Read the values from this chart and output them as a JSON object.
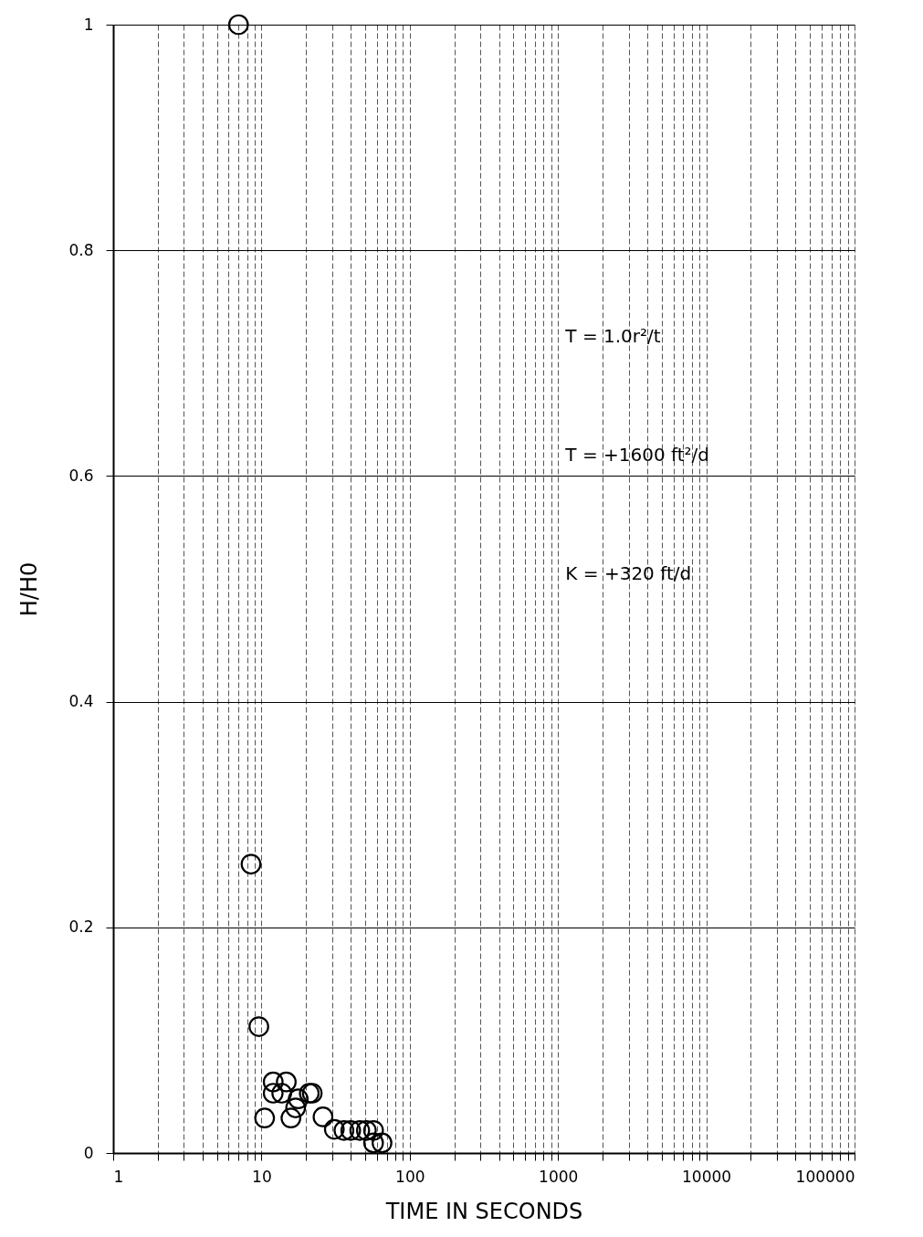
{
  "chart_data": {
    "type": "scatter",
    "xlabel": "TIME IN SECONDS",
    "ylabel": "H/H0",
    "log": "x",
    "grid": true,
    "marker": "circle",
    "xlim": [
      1,
      100000
    ],
    "ylim": [
      0,
      1
    ],
    "xticks": [
      1,
      {
        "value": 2,
        "label": null
      },
      {
        "value": 3,
        "label": null
      },
      {
        "value": 4,
        "label": null
      },
      {
        "value": 5,
        "label": null
      },
      {
        "value": 6,
        "label": null
      },
      {
        "value": 7,
        "label": null
      },
      {
        "value": 8,
        "label": null
      },
      {
        "value": 9,
        "label": null
      },
      10,
      {
        "value": 20,
        "label": null
      },
      {
        "value": 30,
        "label": null
      },
      {
        "value": 40,
        "label": null
      },
      {
        "value": 50,
        "label": null
      },
      {
        "value": 60,
        "label": null
      },
      {
        "value": 70,
        "label": null
      },
      {
        "value": 80,
        "label": null
      },
      {
        "value": 90,
        "label": null
      },
      100,
      {
        "value": 200,
        "label": null
      },
      {
        "value": 300,
        "label": null
      },
      {
        "value": 400,
        "label": null
      },
      {
        "value": 500,
        "label": null
      },
      {
        "value": 600,
        "label": null
      },
      {
        "value": 700,
        "label": null
      },
      {
        "value": 800,
        "label": null
      },
      {
        "value": 900,
        "label": null
      },
      1000,
      {
        "value": 2000,
        "label": null
      },
      {
        "value": 3000,
        "label": null
      },
      {
        "value": 4000,
        "label": null
      },
      {
        "value": 5000,
        "label": null
      },
      {
        "value": 6000,
        "label": null
      },
      {
        "value": 7000,
        "label": null
      },
      {
        "value": 8000,
        "label": null
      },
      {
        "value": 9000,
        "label": null
      },
      10000,
      {
        "value": 20000,
        "label": null
      },
      {
        "value": 30000,
        "label": null
      },
      {
        "value": 40000,
        "label": null
      },
      {
        "value": 50000,
        "label": null
      },
      {
        "value": 60000,
        "label": null
      },
      {
        "value": 70000,
        "label": null
      },
      {
        "value": 80000,
        "label": null
      },
      {
        "value": 90000,
        "label": null
      },
      100000
    ],
    "yticks": [
      0,
      0.2,
      0.4,
      0.6,
      0.8,
      1
    ],
    "annotations": [
      "T = 1.0r²/t",
      "T = +1600 ft²/d",
      "K = +320 ft/d"
    ],
    "series": [
      {
        "color": "#000000",
        "x": [
          7,
          8.5,
          9.6,
          12,
          14.7,
          12,
          13.7,
          21,
          22,
          17.7,
          17,
          10.5,
          15.8,
          26,
          31,
          36,
          40,
          46,
          51,
          57,
          57,
          65
        ],
        "values": [
          1,
          0.256,
          0.112,
          0.063,
          0.063,
          0.053,
          0.053,
          0.053,
          0.053,
          0.048,
          0.04,
          0.031,
          0.031,
          0.032,
          0.021,
          0.02,
          0.02,
          0.02,
          0.02,
          0.02,
          0.009,
          0.009
        ]
      }
    ]
  }
}
